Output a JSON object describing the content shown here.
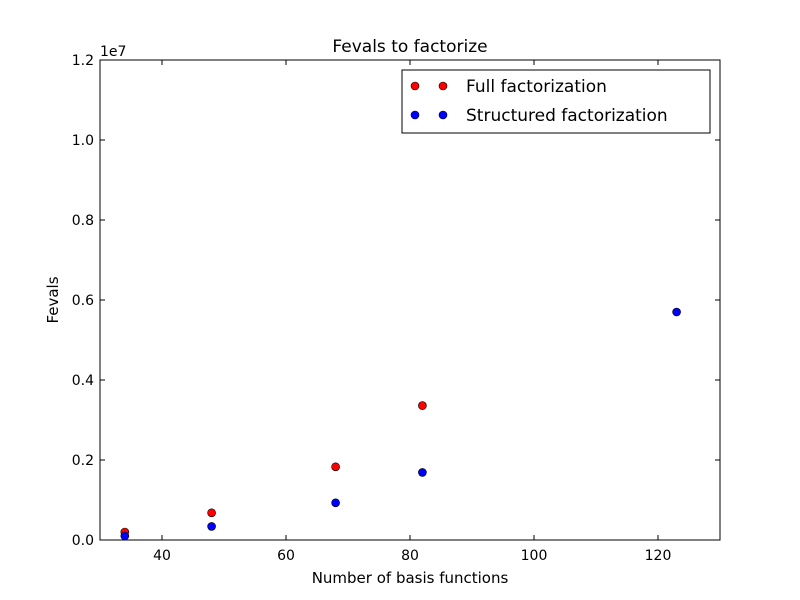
{
  "chart_data": {
    "type": "scatter",
    "title": "Fevals to factorize",
    "xlabel": "Number of basis functions",
    "ylabel": "Fevals",
    "y_offset_label": "1e7",
    "xlim": [
      30,
      130
    ],
    "ylim": [
      0,
      12000000
    ],
    "xticks": [
      40,
      60,
      80,
      100,
      120
    ],
    "yticks": [
      0,
      2000000,
      4000000,
      6000000,
      8000000,
      10000000,
      12000000
    ],
    "xtick_labels": [
      "40",
      "60",
      "80",
      "100",
      "120"
    ],
    "ytick_labels": [
      "0.0",
      "0.2",
      "0.4",
      "0.6",
      "0.8",
      "1.0",
      "1.2"
    ],
    "grid": false,
    "legend_position": "top-right",
    "series": [
      {
        "name": "Full factorization",
        "color": "#ff0000",
        "x": [
          34,
          48,
          68,
          82
        ],
        "y": [
          200000,
          680000,
          1830000,
          3360000
        ]
      },
      {
        "name": "Structured factorization",
        "color": "#0000ff",
        "x": [
          34,
          48,
          68,
          82,
          123
        ],
        "y": [
          100000,
          340000,
          930000,
          1690000,
          5700000
        ]
      }
    ]
  }
}
